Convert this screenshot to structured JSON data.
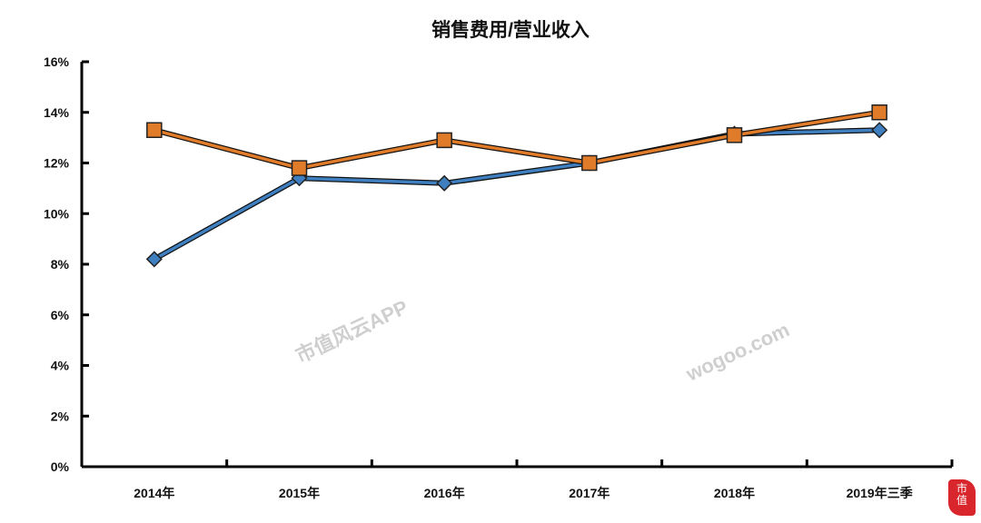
{
  "chart_data": {
    "type": "line",
    "title": "销售费用/营业收入",
    "categories": [
      "2014年",
      "2015年",
      "2016年",
      "2017年",
      "2018年",
      "2019年三季"
    ],
    "series": [
      {
        "values": [
          8.2,
          11.4,
          11.2,
          12.0,
          13.15,
          13.3
        ],
        "color": "#3f7fbf",
        "marker": "diamond"
      },
      {
        "values": [
          13.3,
          11.8,
          12.9,
          12.0,
          13.1,
          14.0
        ],
        "color": "#e07b2a",
        "marker": "square"
      }
    ],
    "ylim": [
      0,
      16
    ],
    "yticks": [
      "0%",
      "2%",
      "4%",
      "6%",
      "8%",
      "10%",
      "12%",
      "14%",
      "16%"
    ],
    "unit": "%",
    "grid": false,
    "xlabel": "",
    "ylabel": ""
  },
  "watermark": [
    "市值风云APP",
    "wogoo.com"
  ],
  "logo": "市值风"
}
